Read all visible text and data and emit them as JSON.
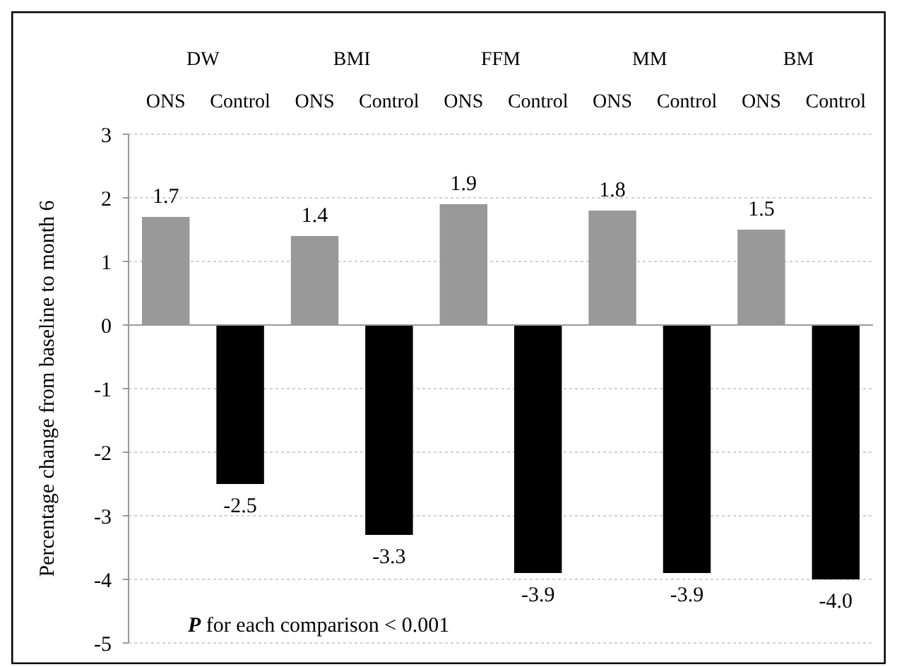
{
  "chart_data": {
    "type": "bar",
    "ylabel": "Percentage change from baseline to month 6",
    "categories": [
      "ONS",
      "Control",
      "ONS",
      "Control",
      "ONS",
      "Control",
      "ONS",
      "Control",
      "ONS",
      "Control"
    ],
    "values": [
      1.7,
      -2.5,
      1.4,
      -3.3,
      1.9,
      -3.9,
      1.8,
      -3.9,
      1.5,
      -4.0
    ],
    "colors": [
      "#999999",
      "#000000",
      "#999999",
      "#000000",
      "#999999",
      "#000000",
      "#999999",
      "#000000",
      "#999999",
      "#000000"
    ],
    "value_labels": [
      "1.7",
      "-2.5",
      "1.4",
      "-3.3",
      "1.9",
      "-3.9",
      "1.8",
      "-3.9",
      "1.5",
      "-4.0"
    ],
    "ylim": [
      -5,
      3
    ],
    "yticks": [
      -5,
      -4,
      -3,
      -2,
      -1,
      0,
      1,
      2,
      3
    ],
    "grid": "y",
    "annotations": [
      "P for each comparison < 0.001",
      "DW",
      "BMI",
      "FFM",
      "MM",
      "BM"
    ]
  }
}
